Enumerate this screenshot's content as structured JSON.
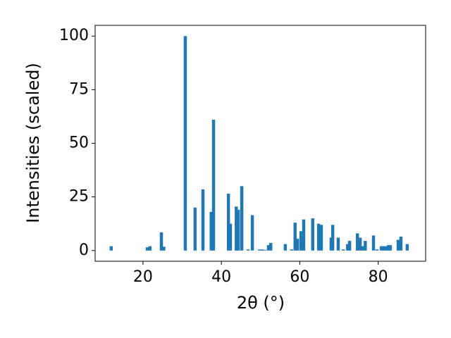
{
  "chart_data": {
    "type": "bar",
    "xlabel": "2θ (°)",
    "ylabel": "Intensities (scaled)",
    "color": "#1f77b4",
    "bar_width": 0.8,
    "x": [
      11.9,
      21.1,
      21.8,
      24.7,
      25.3,
      30.8,
      33.3,
      35.3,
      37.4,
      38.0,
      41.8,
      42.3,
      43.8,
      44.3,
      45.2,
      46.8,
      47.9,
      49.7,
      50.4,
      51.1,
      52.0,
      52.6,
      56.3,
      57.9,
      58.8,
      59.4,
      60.3,
      61.0,
      63.3,
      64.8,
      65.5,
      68.0,
      68.4,
      69.8,
      71.1,
      72.2,
      72.7,
      74.7,
      75.4,
      75.9,
      76.7,
      78.8,
      79.7,
      80.8,
      81.3,
      82.0,
      82.6,
      83.1,
      85.1,
      85.8,
      87.4
    ],
    "values": [
      2,
      1.5,
      2,
      8.5,
      1.8,
      100,
      20,
      28.5,
      18,
      61,
      26.5,
      12.5,
      20.5,
      19,
      30,
      0.5,
      16.5,
      0.5,
      0.5,
      0.3,
      2.5,
      3.5,
      3,
      0.5,
      13,
      5.5,
      9,
      14.5,
      15,
      12.5,
      12,
      6,
      12,
      6,
      0.5,
      3,
      4.5,
      8,
      6,
      2,
      4.5,
      7,
      0.5,
      2,
      2,
      2,
      2.5,
      2.5,
      5,
      6.5,
      3
    ],
    "xlim": [
      7.8,
      92.1
    ],
    "ylim": [
      -5,
      105
    ],
    "xticks": [
      20,
      40,
      60,
      80
    ],
    "yticks": [
      0,
      25,
      50,
      75,
      100
    ]
  }
}
